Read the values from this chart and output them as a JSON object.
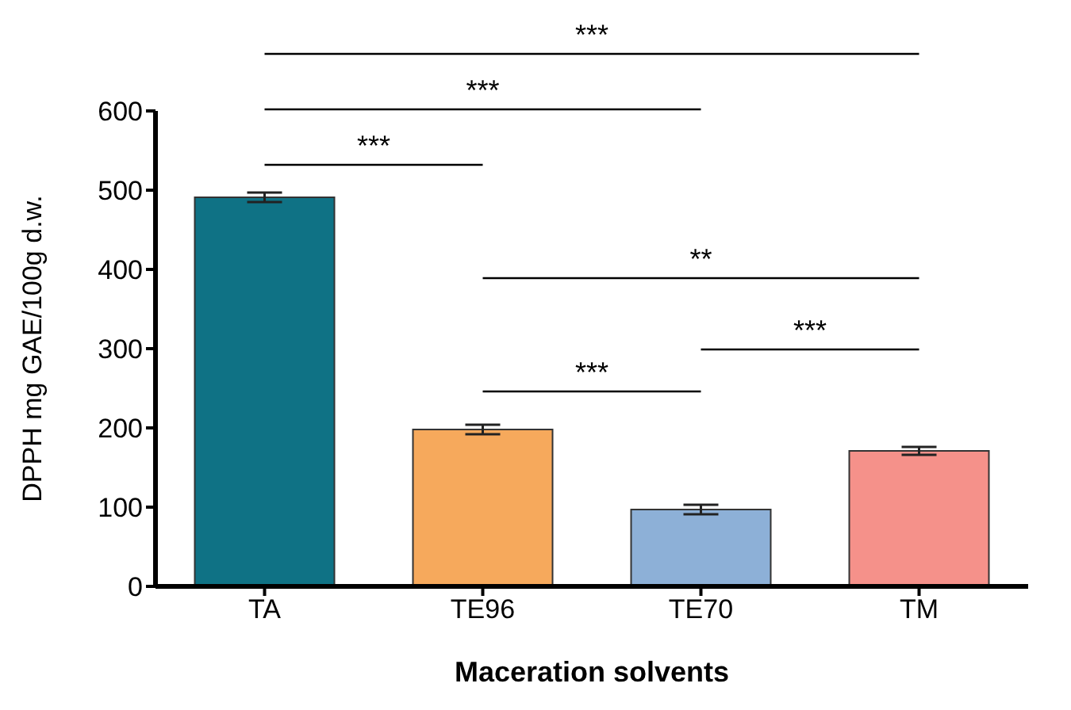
{
  "chart_data": {
    "type": "bar",
    "xlabel": "Maceration solvents",
    "ylabel": "DPPH mg GAE/100g d.w.",
    "categories": [
      "TA",
      "TE96",
      "TE70",
      "TM"
    ],
    "values": [
      491,
      198,
      97,
      171
    ],
    "errors": [
      6,
      6,
      6,
      5
    ],
    "colors": [
      "#0f7285",
      "#f6a95c",
      "#8db0d7",
      "#f5918a"
    ],
    "ylim": [
      0,
      600
    ],
    "yticks": [
      0,
      100,
      200,
      300,
      400,
      500,
      600
    ],
    "annotations": [
      "***",
      "***",
      "***",
      "**",
      "***",
      "***"
    ]
  }
}
